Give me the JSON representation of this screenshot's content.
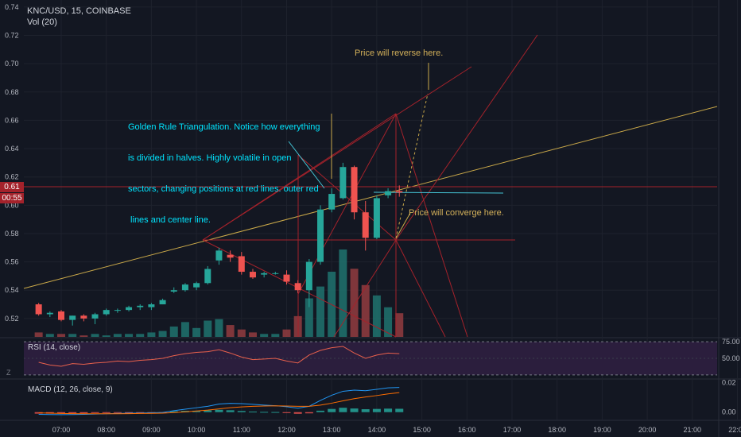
{
  "header": {
    "symbol_line": "KNC/USD, 15, COINBASE",
    "volume_label": "Vol (20)"
  },
  "annotations": {
    "reverse": "Price will reverse here.",
    "converge": "Price will converge here.",
    "golden_rule": [
      "Golden Rule Triangulation. Notice how everything",
      "is divided in halves. Highly volatile in open",
      "sectors, changing positions at red lines. outer red",
      " lines and center line."
    ]
  },
  "price_tags": {
    "last_price": "0.61",
    "countdown": "00:55"
  },
  "axis_buttons": {
    "zoom": "Z"
  },
  "colors": {
    "up": "#26a69a",
    "down": "#ef5350",
    "trend_line": "#c9a849",
    "red_lines": "#a4222b",
    "cyan_text": "#00e5ff",
    "gold_text": "#d4b15a"
  },
  "chart_data": [
    {
      "type": "candlestick",
      "title": "KNC/USD, 15, COINBASE",
      "xlabel": "",
      "ylabel": "",
      "x_ticks": [
        "07:00",
        "08:00",
        "09:00",
        "10:00",
        "11:00",
        "12:00",
        "13:00",
        "14:00",
        "15:00",
        "16:00",
        "17:00",
        "18:00",
        "19:00",
        "20:00",
        "21:00",
        "22:00"
      ],
      "y_ticks": [
        "0.52",
        "0.54",
        "0.56",
        "0.58",
        "0.60",
        "0.62",
        "0.64",
        "0.66",
        "0.68",
        "0.70",
        "0.72",
        "0.74"
      ],
      "ylim": [
        0.507,
        0.745
      ],
      "candles": [
        {
          "t": "06:30",
          "o": 0.53,
          "h": 0.531,
          "l": 0.522,
          "c": 0.523
        },
        {
          "t": "06:45",
          "o": 0.523,
          "h": 0.525,
          "l": 0.521,
          "c": 0.524
        },
        {
          "t": "07:00",
          "o": 0.525,
          "h": 0.526,
          "l": 0.518,
          "c": 0.519
        },
        {
          "t": "07:15",
          "o": 0.519,
          "h": 0.522,
          "l": 0.515,
          "c": 0.522
        },
        {
          "t": "07:30",
          "o": 0.522,
          "h": 0.523,
          "l": 0.518,
          "c": 0.52
        },
        {
          "t": "07:45",
          "o": 0.52,
          "h": 0.524,
          "l": 0.516,
          "c": 0.523
        },
        {
          "t": "08:00",
          "o": 0.523,
          "h": 0.527,
          "l": 0.522,
          "c": 0.526
        },
        {
          "t": "08:15",
          "o": 0.526,
          "h": 0.527,
          "l": 0.524,
          "c": 0.526
        },
        {
          "t": "08:30",
          "o": 0.526,
          "h": 0.529,
          "l": 0.525,
          "c": 0.528
        },
        {
          "t": "08:45",
          "o": 0.528,
          "h": 0.53,
          "l": 0.526,
          "c": 0.529
        },
        {
          "t": "09:00",
          "o": 0.528,
          "h": 0.531,
          "l": 0.526,
          "c": 0.53
        },
        {
          "t": "09:15",
          "o": 0.53,
          "h": 0.534,
          "l": 0.53,
          "c": 0.533
        },
        {
          "t": "09:30",
          "o": 0.539,
          "h": 0.542,
          "l": 0.538,
          "c": 0.54
        },
        {
          "t": "09:45",
          "o": 0.54,
          "h": 0.545,
          "l": 0.539,
          "c": 0.544
        },
        {
          "t": "10:00",
          "o": 0.542,
          "h": 0.546,
          "l": 0.54,
          "c": 0.545
        },
        {
          "t": "10:15",
          "o": 0.545,
          "h": 0.557,
          "l": 0.544,
          "c": 0.555
        },
        {
          "t": "10:30",
          "o": 0.561,
          "h": 0.57,
          "l": 0.558,
          "c": 0.568
        },
        {
          "t": "10:45",
          "o": 0.565,
          "h": 0.568,
          "l": 0.56,
          "c": 0.563
        },
        {
          "t": "11:00",
          "o": 0.564,
          "h": 0.567,
          "l": 0.551,
          "c": 0.553
        },
        {
          "t": "11:15",
          "o": 0.553,
          "h": 0.555,
          "l": 0.548,
          "c": 0.549
        },
        {
          "t": "11:30",
          "o": 0.551,
          "h": 0.553,
          "l": 0.549,
          "c": 0.552
        },
        {
          "t": "11:45",
          "o": 0.552,
          "h": 0.553,
          "l": 0.551,
          "c": 0.552
        },
        {
          "t": "12:00",
          "o": 0.551,
          "h": 0.554,
          "l": 0.544,
          "c": 0.546
        },
        {
          "t": "12:15",
          "o": 0.545,
          "h": 0.547,
          "l": 0.538,
          "c": 0.54
        },
        {
          "t": "12:30",
          "o": 0.54,
          "h": 0.562,
          "l": 0.528,
          "c": 0.56
        },
        {
          "t": "12:45",
          "o": 0.56,
          "h": 0.6,
          "l": 0.558,
          "c": 0.597
        },
        {
          "t": "13:00",
          "o": 0.597,
          "h": 0.612,
          "l": 0.595,
          "c": 0.608
        },
        {
          "t": "13:15",
          "o": 0.605,
          "h": 0.63,
          "l": 0.604,
          "c": 0.627
        },
        {
          "t": "13:30",
          "o": 0.627,
          "h": 0.628,
          "l": 0.59,
          "c": 0.595
        },
        {
          "t": "13:45",
          "o": 0.595,
          "h": 0.603,
          "l": 0.568,
          "c": 0.577
        },
        {
          "t": "14:00",
          "o": 0.577,
          "h": 0.607,
          "l": 0.576,
          "c": 0.605
        },
        {
          "t": "14:15",
          "o": 0.607,
          "h": 0.612,
          "l": 0.605,
          "c": 0.61
        },
        {
          "t": "14:30",
          "o": 0.61,
          "h": 0.614,
          "l": 0.606,
          "c": 0.609
        }
      ],
      "volume": [
        3,
        2,
        2,
        2,
        1,
        2,
        1,
        2,
        2,
        2,
        3,
        4,
        7,
        10,
        6,
        11,
        12,
        8,
        5,
        3,
        2,
        2,
        5,
        14,
        26,
        34,
        44,
        59,
        46,
        35,
        28,
        20,
        16
      ]
    },
    {
      "type": "line",
      "title": "RSI (14, close)",
      "y_ticks": [
        "75.00",
        "50.00"
      ],
      "ylim": [
        20,
        80
      ]
    },
    {
      "type": "line",
      "title": "MACD (12, 26, close, 9)",
      "y_ticks": [
        "0.02",
        "0.00"
      ],
      "ylim": [
        -0.005,
        0.022
      ]
    }
  ]
}
